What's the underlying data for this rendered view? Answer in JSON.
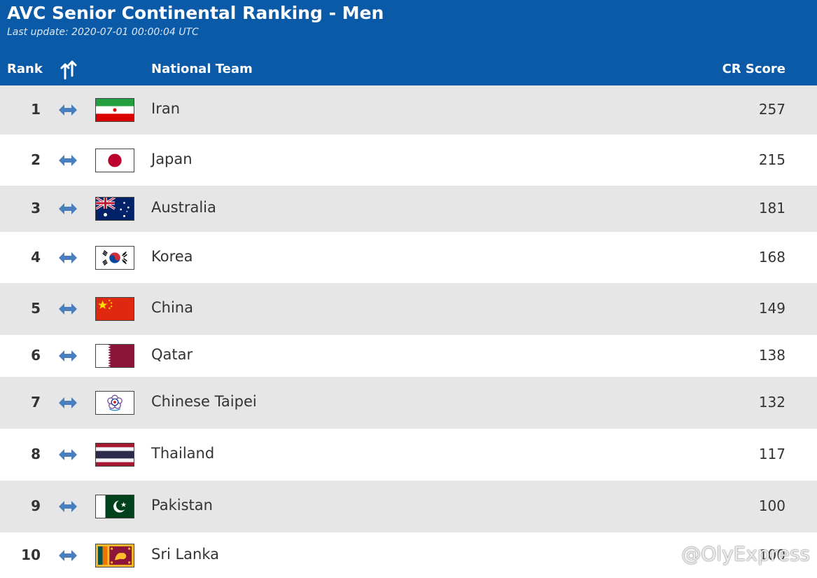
{
  "header": {
    "title": "AVC Senior Continental Ranking - Men",
    "subtitle": "Last update: 2020-07-01 00:00:04 UTC",
    "columns": {
      "rank": "Rank",
      "team": "National Team",
      "score": "CR Score"
    },
    "move_icon": "rank-change-icon"
  },
  "rows": [
    {
      "rank": "1",
      "team": "Iran",
      "score": "257",
      "flag": "iran-flag-icon"
    },
    {
      "rank": "2",
      "team": "Japan",
      "score": "215",
      "flag": "japan-flag-icon"
    },
    {
      "rank": "3",
      "team": "Australia",
      "score": "181",
      "flag": "australia-flag-icon"
    },
    {
      "rank": "4",
      "team": "Korea",
      "score": "168",
      "flag": "korea-flag-icon"
    },
    {
      "rank": "5",
      "team": "China",
      "score": "149",
      "flag": "china-flag-icon"
    },
    {
      "rank": "6",
      "team": "Qatar",
      "score": "138",
      "flag": "qatar-flag-icon"
    },
    {
      "rank": "7",
      "team": "Chinese Taipei",
      "score": "132",
      "flag": "chinese-taipei-flag-icon"
    },
    {
      "rank": "8",
      "team": "Thailand",
      "score": "117",
      "flag": "thailand-flag-icon"
    },
    {
      "rank": "9",
      "team": "Pakistan",
      "score": "100",
      "flag": "pakistan-flag-icon"
    },
    {
      "rank": "10",
      "team": "Sri Lanka",
      "score": "100",
      "flag": "sri-lanka-flag-icon"
    }
  ],
  "watermark": "@OlyExpress",
  "colors": {
    "header": "#0a5aa7",
    "arrow": "#4a7fbf",
    "row_alt": "#e6e6e6"
  }
}
